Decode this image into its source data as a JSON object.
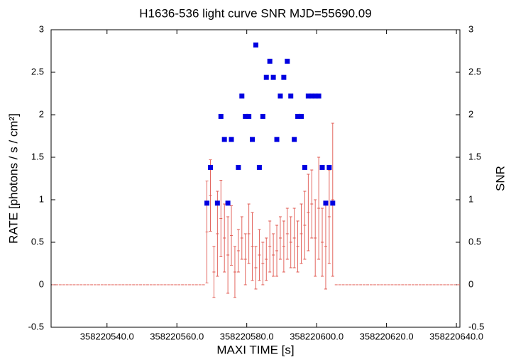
{
  "chart_data": {
    "type": "errorbar_scatter",
    "title": "H1636-536 light curve  SNR MJD=55690.09",
    "xlabel": "MAXI TIME [s]",
    "ylabel": "RATE [photons / s / cm²]",
    "y2label": "SNR",
    "xlim": [
      358220524,
      358220641
    ],
    "xticks": [
      {
        "value": 358220540,
        "label": "358220540.0"
      },
      {
        "value": 358220560,
        "label": "358220560.0"
      },
      {
        "value": 358220580,
        "label": "358220580.0"
      },
      {
        "value": 358220600,
        "label": "358220600.0"
      },
      {
        "value": 358220620,
        "label": "358220620.0"
      },
      {
        "value": 358220640,
        "label": "358220640.0"
      }
    ],
    "ylim": [
      -0.5,
      3
    ],
    "yticks": [
      -0.5,
      0,
      0.5,
      1,
      1.5,
      2,
      2.5,
      3
    ],
    "y2lim": [
      -0.5,
      3
    ],
    "y2ticks": [
      -0.5,
      0,
      0.5,
      1,
      1.5,
      2,
      2.5,
      3
    ],
    "grid": false,
    "series": [
      {
        "style": "errorbars",
        "color": "#e0574f",
        "x": [
          358220524.6,
          358220525.6,
          358220526.6,
          358220527.6,
          358220528.6,
          358220529.6,
          358220530.6,
          358220531.6,
          358220532.6,
          358220533.6,
          358220534.6,
          358220535.6,
          358220536.6,
          358220537.6,
          358220538.6,
          358220539.6,
          358220540.6,
          358220541.6,
          358220542.6,
          358220543.6,
          358220544.6,
          358220545.6,
          358220546.6,
          358220547.6,
          358220548.6,
          358220549.6,
          358220550.6,
          358220551.6,
          358220552.6,
          358220553.6,
          358220554.6,
          358220555.6,
          358220556.6,
          358220557.6,
          358220558.6,
          358220559.6,
          358220560.6,
          358220561.6,
          358220562.6,
          358220563.6,
          358220564.6,
          358220565.6,
          358220566.6,
          358220567.6,
          358220568.6,
          358220569.6,
          358220570.6,
          358220571.6,
          358220572.6,
          358220573.6,
          358220574.6,
          358220575.6,
          358220576.6,
          358220577.6,
          358220578.6,
          358220579.6,
          358220580.6,
          358220581.6,
          358220582.6,
          358220583.6,
          358220584.6,
          358220585.6,
          358220586.6,
          358220587.6,
          358220588.6,
          358220589.6,
          358220590.6,
          358220591.6,
          358220592.6,
          358220593.6,
          358220594.6,
          358220595.6,
          358220596.6,
          358220597.6,
          358220598.6,
          358220599.6,
          358220600.6,
          358220601.6,
          358220602.6,
          358220603.6,
          358220604.6,
          358220605.6,
          358220606.6,
          358220607.6,
          358220608.6,
          358220609.6,
          358220610.6,
          358220611.6,
          358220612.6,
          358220613.6,
          358220614.6,
          358220615.6,
          358220616.6,
          358220617.6,
          358220618.6,
          358220619.6,
          358220620.6,
          358220621.6,
          358220622.6,
          358220623.6,
          358220624.6,
          358220625.6,
          358220626.6,
          358220627.6,
          358220628.6,
          358220629.6,
          358220630.6,
          358220631.6,
          358220632.6,
          358220633.6,
          358220634.6,
          358220635.6,
          358220636.6,
          358220637.6,
          358220638.6,
          358220639.6,
          358220640.6
        ],
        "values": [
          0,
          0,
          0,
          0,
          0,
          0,
          0,
          0,
          0,
          0,
          0,
          0,
          0,
          0,
          0,
          0,
          0,
          0,
          0,
          0,
          0,
          0,
          0,
          0,
          0,
          0,
          0,
          0,
          0,
          0,
          0,
          0,
          0,
          0,
          0,
          0,
          0,
          0,
          0,
          0,
          0,
          0,
          0,
          0,
          0.62,
          1.05,
          0.15,
          0.6,
          0.78,
          0.55,
          0.35,
          0.58,
          0.15,
          0.4,
          0.55,
          0.3,
          0.6,
          0.45,
          0.2,
          0.35,
          0.25,
          0.3,
          0.45,
          0.35,
          0.4,
          0.55,
          0.45,
          0.6,
          0.5,
          0.55,
          0.45,
          0.6,
          0.7,
          0.85,
          0.95,
          0.55,
          0.9,
          0.5,
          0.45,
          0.8,
          1.0,
          0,
          0,
          0,
          0,
          0,
          0,
          0,
          0,
          0,
          0,
          0,
          0,
          0,
          0,
          0,
          0,
          0,
          0,
          0,
          0,
          0,
          0,
          0,
          0,
          0,
          0,
          0,
          0,
          0,
          0,
          0,
          0,
          0,
          0,
          0,
          0
        ],
        "errors": [
          0,
          0,
          0,
          0,
          0,
          0,
          0,
          0,
          0,
          0,
          0,
          0,
          0,
          0,
          0,
          0,
          0,
          0,
          0,
          0,
          0,
          0,
          0,
          0,
          0,
          0,
          0,
          0,
          0,
          0,
          0,
          0,
          0,
          0,
          0,
          0,
          0,
          0,
          0,
          0,
          0,
          0,
          0,
          0,
          0.6,
          0.42,
          0.3,
          0.5,
          0.45,
          0.4,
          0.45,
          0.35,
          0.3,
          0.25,
          0.25,
          0.3,
          0.35,
          0.4,
          0.25,
          0.3,
          0.25,
          0.25,
          0.3,
          0.25,
          0.3,
          0.25,
          0.3,
          0.3,
          0.3,
          0.35,
          0.3,
          0.35,
          0.4,
          0.45,
          0.4,
          0.45,
          0.6,
          0.4,
          0.5,
          0.55,
          0.9,
          0,
          0,
          0,
          0,
          0,
          0,
          0,
          0,
          0,
          0,
          0,
          0,
          0,
          0,
          0,
          0,
          0,
          0,
          0,
          0,
          0,
          0,
          0,
          0,
          0,
          0,
          0,
          0,
          0,
          0,
          0,
          0,
          0,
          0,
          0,
          0
        ]
      },
      {
        "style": "points",
        "color": "#0000e0",
        "axis": "y2",
        "x": [
          358220568.6,
          358220569.6,
          358220571.6,
          358220572.6,
          358220573.6,
          358220574.6,
          358220575.6,
          358220577.6,
          358220578.6,
          358220579.6,
          358220580.6,
          358220581.6,
          358220582.6,
          358220583.6,
          358220584.6,
          358220585.6,
          358220586.6,
          358220587.6,
          358220588.6,
          358220589.6,
          358220590.6,
          358220591.6,
          358220592.6,
          358220593.6,
          358220594.6,
          358220595.6,
          358220596.6,
          358220597.6,
          358220598.6,
          358220599.6,
          358220600.6,
          358220601.6,
          358220602.6,
          358220603.6,
          358220604.6
        ],
        "values": [
          0.96,
          1.38,
          0.96,
          1.98,
          1.71,
          0.96,
          1.71,
          1.38,
          2.22,
          1.98,
          1.98,
          1.71,
          2.82,
          1.38,
          1.98,
          2.44,
          2.63,
          2.44,
          1.71,
          2.22,
          2.44,
          2.63,
          2.22,
          1.71,
          1.98,
          1.98,
          1.38,
          2.22,
          2.22,
          2.22,
          2.22,
          1.38,
          0.96,
          1.38,
          0.96
        ]
      }
    ]
  }
}
